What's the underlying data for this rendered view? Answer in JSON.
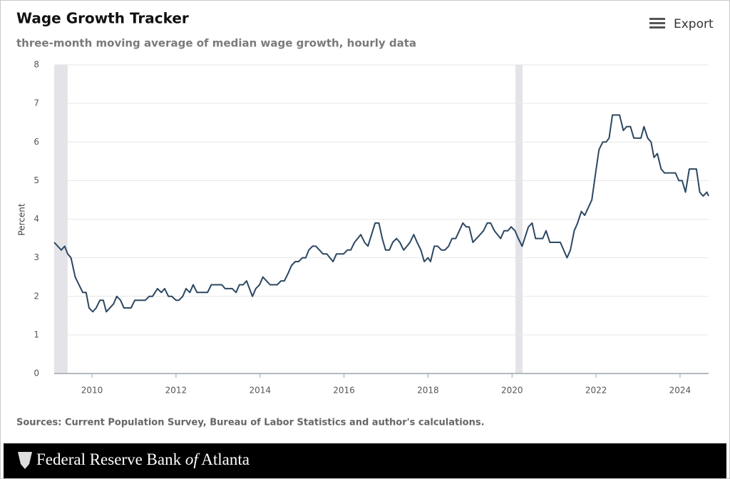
{
  "export_label": "Export",
  "brand": {
    "before": "Federal Reserve Bank",
    "italic": "of",
    "after": "Atlanta"
  },
  "chart_data": {
    "type": "line",
    "title": "Wage Growth Tracker",
    "subtitle": "three-month moving average of median wage growth, hourly data",
    "y_label": "Percent",
    "source": "Sources: Current Population Survey, Bureau of Labor Statistics and author's calculations.",
    "xlim": [
      2009.1,
      2024.68
    ],
    "xticks": [
      2010,
      2012,
      2014,
      2016,
      2018,
      2020,
      2022,
      2024
    ],
    "ylim": [
      0,
      8
    ],
    "yticks": [
      0,
      1,
      2,
      3,
      4,
      5,
      6,
      7,
      8
    ],
    "grid": true,
    "recession_color": "#e4e4e8",
    "recessions": [
      [
        2009.1,
        2009.42
      ],
      [
        2020.08,
        2020.25
      ]
    ],
    "x": [
      2009.1,
      2009.27,
      2009.35,
      2009.42,
      2009.5,
      2009.6,
      2009.78,
      2009.86,
      2009.93,
      2010.02,
      2010.1,
      2010.19,
      2010.27,
      2010.34,
      2010.51,
      2010.59,
      2010.68,
      2010.76,
      2010.93,
      2011.02,
      2011.27,
      2011.36,
      2011.44,
      2011.56,
      2011.65,
      2011.73,
      2011.82,
      2011.9,
      2012.0,
      2012.07,
      2012.16,
      2012.24,
      2012.33,
      2012.41,
      2012.5,
      2012.75,
      2012.84,
      2013.09,
      2013.17,
      2013.34,
      2013.43,
      2013.51,
      2013.6,
      2013.68,
      2013.82,
      2013.9,
      2013.99,
      2014.07,
      2014.24,
      2014.41,
      2014.5,
      2014.58,
      2014.67,
      2014.75,
      2014.84,
      2014.92,
      2015.01,
      2015.09,
      2015.16,
      2015.25,
      2015.33,
      2015.5,
      2015.59,
      2015.74,
      2015.82,
      2015.99,
      2016.08,
      2016.16,
      2016.25,
      2016.4,
      2016.49,
      2016.57,
      2016.74,
      2016.83,
      2016.91,
      2016.99,
      2017.08,
      2017.16,
      2017.25,
      2017.33,
      2017.42,
      2017.5,
      2017.57,
      2017.66,
      2017.74,
      2017.83,
      2017.91,
      2018.0,
      2018.06,
      2018.15,
      2018.23,
      2018.32,
      2018.4,
      2018.49,
      2018.57,
      2018.66,
      2018.83,
      2018.91,
      2018.98,
      2019.07,
      2019.24,
      2019.32,
      2019.41,
      2019.49,
      2019.58,
      2019.73,
      2019.81,
      2019.9,
      2019.98,
      2020.07,
      2020.15,
      2020.24,
      2020.39,
      2020.48,
      2020.56,
      2020.73,
      2020.81,
      2020.9,
      2021.15,
      2021.31,
      2021.39,
      2021.48,
      2021.56,
      2021.65,
      2021.73,
      2021.9,
      2021.99,
      2022.07,
      2022.16,
      2022.24,
      2022.31,
      2022.39,
      2022.56,
      2022.65,
      2022.73,
      2022.82,
      2022.9,
      2023.07,
      2023.14,
      2023.23,
      2023.31,
      2023.38,
      2023.46,
      2023.55,
      2023.63,
      2023.89,
      2023.97,
      2024.05,
      2024.13,
      2024.22,
      2024.39,
      2024.47,
      2024.55,
      2024.64,
      2024.68
    ],
    "series": [
      {
        "name": "Wage growth",
        "color": "#2c4762",
        "values": [
          3.4,
          3.2,
          3.3,
          3.1,
          3.0,
          2.5,
          2.1,
          2.1,
          1.7,
          1.6,
          1.7,
          1.9,
          1.9,
          1.6,
          1.8,
          2.0,
          1.9,
          1.7,
          1.7,
          1.9,
          1.9,
          2.0,
          2.0,
          2.2,
          2.1,
          2.2,
          2.0,
          2.0,
          1.9,
          1.9,
          2.0,
          2.2,
          2.1,
          2.3,
          2.1,
          2.1,
          2.3,
          2.3,
          2.2,
          2.2,
          2.1,
          2.3,
          2.3,
          2.4,
          2.0,
          2.2,
          2.3,
          2.5,
          2.3,
          2.3,
          2.4,
          2.4,
          2.6,
          2.8,
          2.9,
          2.9,
          3.0,
          3.0,
          3.2,
          3.3,
          3.3,
          3.1,
          3.1,
          2.9,
          3.1,
          3.1,
          3.2,
          3.2,
          3.4,
          3.6,
          3.4,
          3.3,
          3.9,
          3.9,
          3.5,
          3.2,
          3.2,
          3.4,
          3.5,
          3.4,
          3.2,
          3.3,
          3.4,
          3.6,
          3.4,
          3.2,
          2.9,
          3.0,
          2.9,
          3.3,
          3.3,
          3.2,
          3.2,
          3.3,
          3.5,
          3.5,
          3.9,
          3.8,
          3.8,
          3.4,
          3.6,
          3.7,
          3.9,
          3.9,
          3.7,
          3.5,
          3.7,
          3.7,
          3.8,
          3.7,
          3.5,
          3.3,
          3.8,
          3.9,
          3.5,
          3.5,
          3.7,
          3.4,
          3.4,
          3.0,
          3.2,
          3.7,
          3.9,
          4.2,
          4.1,
          4.5,
          5.2,
          5.8,
          6.0,
          6.0,
          6.1,
          6.7,
          6.7,
          6.3,
          6.4,
          6.4,
          6.1,
          6.1,
          6.4,
          6.1,
          6.0,
          5.6,
          5.7,
          5.3,
          5.2,
          5.2,
          5.0,
          5.0,
          4.7,
          5.3,
          5.3,
          4.7,
          4.6,
          4.7,
          4.6
        ]
      }
    ]
  }
}
